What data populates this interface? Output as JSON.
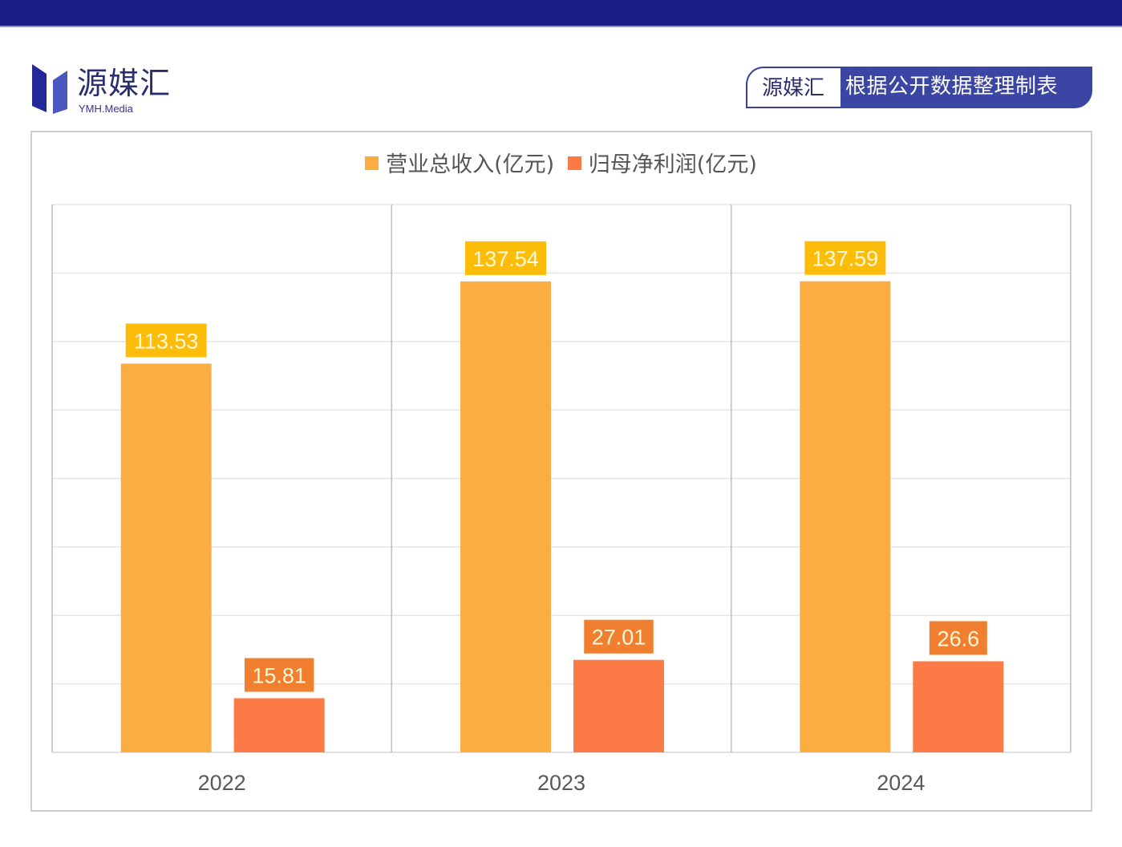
{
  "header": {
    "brand_cn": "源媒汇",
    "brand_en": "YMH.Media",
    "badge_brand": "源媒汇",
    "badge_text": "根据公开数据整理制表",
    "colors": {
      "topbar": "#1b1e86",
      "badge": "#3b45a4"
    }
  },
  "chart_data": {
    "type": "bar",
    "title": "",
    "xlabel": "",
    "ylabel": "",
    "ylim": [
      0,
      160
    ],
    "grid": true,
    "y_grid_step": 20,
    "y_tick_labels_visible": false,
    "legend_position": "top-center",
    "categories": [
      "2022",
      "2023",
      "2024"
    ],
    "series": [
      {
        "name": "营业总收入(亿元)",
        "color": "#fbad42",
        "label_color": "#fbbd0a",
        "values": [
          113.53,
          137.54,
          137.59
        ],
        "labels": [
          "113.53",
          "137.54",
          "137.59"
        ]
      },
      {
        "name": "归母净利润(亿元)",
        "color": "#fc7a45",
        "label_color": "#f07f30",
        "values": [
          15.81,
          27.01,
          26.6
        ],
        "labels": [
          "15.81",
          "27.01",
          "26.6"
        ]
      }
    ]
  }
}
